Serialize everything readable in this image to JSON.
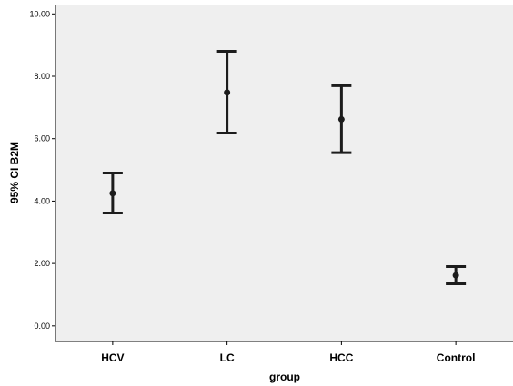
{
  "chart_data": {
    "type": "errorbar",
    "xlabel": "group",
    "ylabel": "95% CI B2M",
    "categories": [
      "HCV",
      "LC",
      "HCC",
      "Control"
    ],
    "series": [
      {
        "means": [
          4.25,
          7.48,
          6.62,
          1.62
        ],
        "lower": [
          3.62,
          6.18,
          5.55,
          1.35
        ],
        "upper": [
          4.9,
          8.8,
          7.7,
          1.9
        ]
      }
    ],
    "ylim": [
      -0.5,
      10.3
    ],
    "yticks": [
      0,
      2,
      4,
      6,
      8,
      10
    ],
    "ytick_labels": [
      "0.00",
      "2.00",
      "4.00",
      "6.00",
      "8.00",
      "10.00"
    ],
    "grid": false,
    "colors": {
      "plot_background": "#efefef",
      "marker": "#1c1c1c",
      "axis": "#000000"
    }
  }
}
